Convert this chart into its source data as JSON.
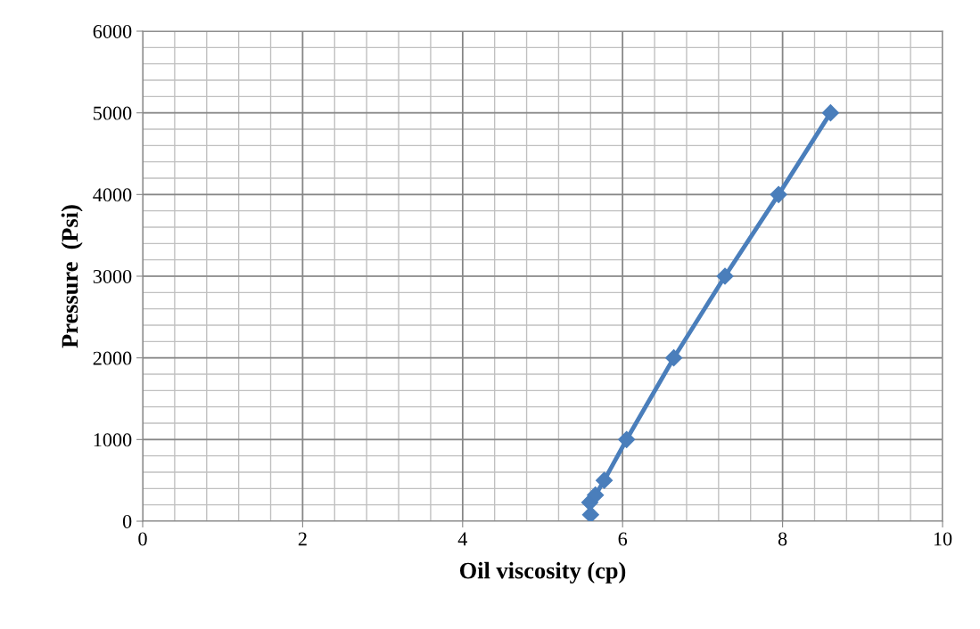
{
  "chart_data": {
    "type": "line",
    "xlabel": "Oil viscosity (cp)",
    "ylabel": "Pressure  (Psi)",
    "series": [
      {
        "color": "#4a7ebb",
        "x": [
          5.6,
          5.59,
          5.66,
          5.77,
          6.05,
          6.64,
          7.28,
          7.95,
          8.6
        ],
        "values": [
          80,
          230,
          320,
          500,
          1000,
          2000,
          3000,
          4000,
          5000
        ]
      }
    ],
    "xlim": [
      0,
      10
    ],
    "xticks": [
      0,
      2,
      4,
      6,
      8,
      10
    ],
    "ylim": [
      0,
      6000
    ],
    "yticks": [
      0,
      1000,
      2000,
      3000,
      4000,
      5000,
      6000
    ],
    "grid": true,
    "marker": "diamond",
    "line_style": "solid"
  }
}
